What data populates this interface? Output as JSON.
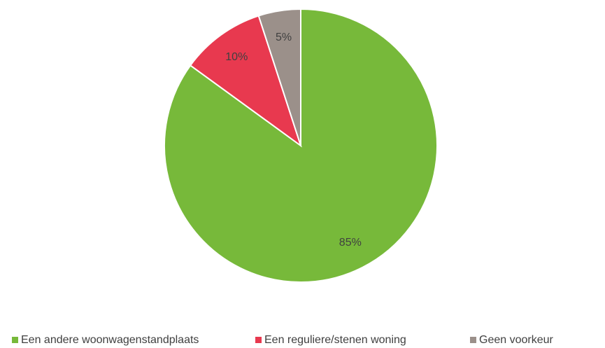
{
  "chart_data": {
    "type": "pie",
    "categories": [
      "Een andere woonwagenstandplaats",
      "Een reguliere/stenen woning",
      "Geen voorkeur"
    ],
    "values": [
      85,
      10,
      5
    ],
    "value_labels": [
      "85%",
      "10%",
      "5%"
    ],
    "colors": [
      "#77b93a",
      "#e8394f",
      "#9b908a"
    ],
    "legend": "bottom"
  }
}
